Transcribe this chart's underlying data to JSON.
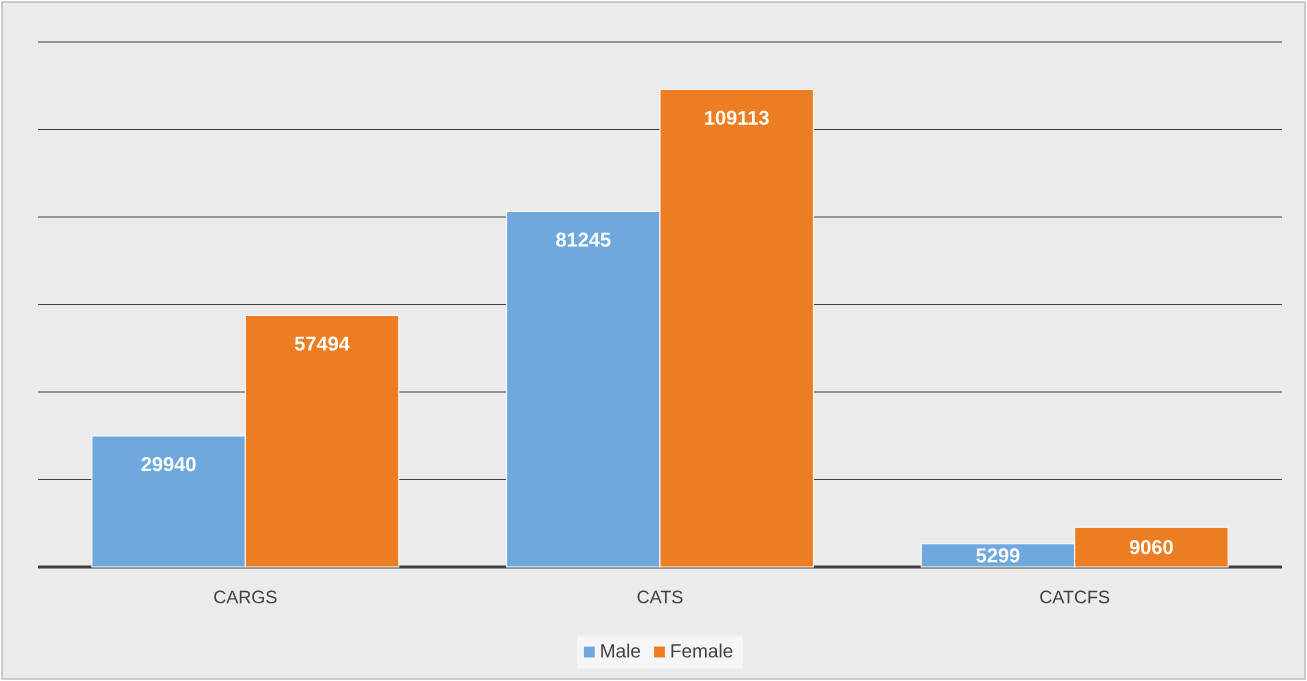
{
  "chart_data": {
    "type": "bar",
    "categories": [
      "CARGS",
      "CATS",
      "CATCFS"
    ],
    "series": [
      {
        "name": "Male",
        "color": "#6fa8dc",
        "values": [
          29940,
          81245,
          5299
        ]
      },
      {
        "name": "Female",
        "color": "#ed7d22",
        "values": [
          57494,
          109113,
          9060
        ]
      }
    ],
    "ylim": [
      0,
      120000
    ],
    "yticks": [
      {
        "value": 0,
        "label": null
      },
      {
        "value": 20000,
        "label": null
      },
      {
        "value": 40000,
        "label": null
      },
      {
        "value": 60000,
        "label": null
      },
      {
        "value": 80000,
        "label": null
      },
      {
        "value": 100000,
        "label": null
      },
      {
        "value": 120000,
        "label": null
      }
    ],
    "grid": "y",
    "tick_labels": "x",
    "data_labels": true,
    "legend": "bottom"
  }
}
